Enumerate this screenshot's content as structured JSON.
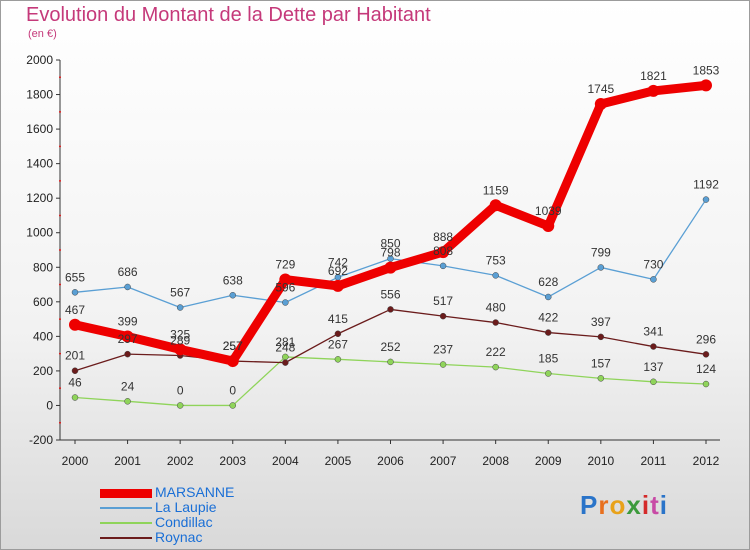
{
  "title": "Evolution du Montant de la Dette par Habitant",
  "subtitle": "(en €)",
  "logo": {
    "text": "Proxiti",
    "letters": [
      "P",
      "r",
      "o",
      "x",
      "i",
      "t",
      "i"
    ],
    "colors": [
      "#2a74c9",
      "#e8701e",
      "#e8a21a",
      "#3c9a3c",
      "#d42a2a",
      "#c84aa6",
      "#2a74c9"
    ]
  },
  "chart_data": {
    "type": "line",
    "x": [
      "2000",
      "2001",
      "2002",
      "2003",
      "2004",
      "2005",
      "2006",
      "2007",
      "2008",
      "2009",
      "2010",
      "2011",
      "2012"
    ],
    "ylim": [
      -200,
      2000
    ],
    "yticks": [
      -200,
      0,
      200,
      400,
      600,
      800,
      1000,
      1200,
      1400,
      1600,
      1800,
      2000
    ],
    "grid": false,
    "legend_position": "bottom-left",
    "series": [
      {
        "name": "La Laupie",
        "color": "#5a9fd4",
        "values": [
          655,
          686,
          567,
          638,
          596,
          742,
          850,
          808,
          753,
          628,
          799,
          730,
          1192
        ]
      },
      {
        "name": "Condillac",
        "color": "#8fd45a",
        "values": [
          46,
          24,
          0,
          0,
          281,
          267,
          252,
          237,
          222,
          185,
          157,
          137,
          124
        ]
      },
      {
        "name": "Roynac",
        "color": "#6b1c1c",
        "values": [
          201,
          297,
          289,
          257,
          248,
          415,
          556,
          517,
          480,
          422,
          397,
          341,
          296
        ]
      },
      {
        "name": "MARSANNE",
        "color": "#ee0000",
        "values": [
          467,
          399,
          325,
          257,
          729,
          692,
          798,
          888,
          1159,
          1039,
          1745,
          1821,
          1853
        ]
      }
    ],
    "legend_order": [
      "MARSANNE",
      "La Laupie",
      "Condillac",
      "Roynac"
    ]
  }
}
